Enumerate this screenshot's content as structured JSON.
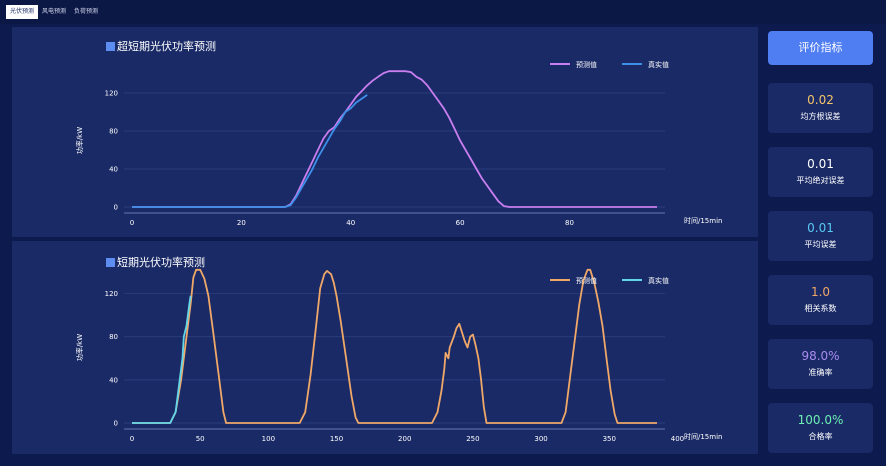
{
  "tabs": [
    {
      "label": "光伏预测",
      "active": true
    },
    {
      "label": "风电预测",
      "active": false
    },
    {
      "label": "负荷预测",
      "active": false
    }
  ],
  "chart1": {
    "title": "超短期光伏功率预测",
    "chart_data": {
      "type": "line",
      "title": "超短期光伏功率预测",
      "xlabel": "时间/15min",
      "ylabel": "功率/kW",
      "xlim": [
        0,
        96
      ],
      "ylim": [
        0,
        140
      ],
      "xticks": [
        0,
        20,
        40,
        60,
        80
      ],
      "yticks": [
        0,
        40,
        80,
        120
      ],
      "grid": true,
      "legend": "top-right",
      "series": [
        {
          "name": "预测值",
          "color": "#c97ef0",
          "points": [
            [
              0,
              0
            ],
            [
              28,
              0
            ],
            [
              29,
              3
            ],
            [
              30,
              12
            ],
            [
              31,
              24
            ],
            [
              32,
              36
            ],
            [
              33,
              48
            ],
            [
              34,
              60
            ],
            [
              35,
              72
            ],
            [
              36,
              80
            ],
            [
              37,
              84
            ],
            [
              38,
              93
            ],
            [
              39,
              100
            ],
            [
              40,
              108
            ],
            [
              41,
              116
            ],
            [
              42,
              122
            ],
            [
              43,
              128
            ],
            [
              44,
              133
            ],
            [
              45,
              137
            ],
            [
              46,
              141
            ],
            [
              47,
              143
            ],
            [
              48,
              143
            ],
            [
              49,
              143
            ],
            [
              50,
              143
            ],
            [
              51,
              142
            ],
            [
              52,
              137
            ],
            [
              53,
              134
            ],
            [
              54,
              128
            ],
            [
              55,
              120
            ],
            [
              56,
              112
            ],
            [
              57,
              104
            ],
            [
              58,
              94
            ],
            [
              59,
              82
            ],
            [
              60,
              70
            ],
            [
              61,
              60
            ],
            [
              62,
              50
            ],
            [
              63,
              40
            ],
            [
              64,
              30
            ],
            [
              65,
              22
            ],
            [
              66,
              14
            ],
            [
              67,
              6
            ],
            [
              68,
              1
            ],
            [
              69,
              0
            ],
            [
              96,
              0
            ]
          ]
        },
        {
          "name": "真实值",
          "color": "#3d8fe8",
          "points": [
            [
              0,
              0
            ],
            [
              28,
              0
            ],
            [
              29,
              2
            ],
            [
              30,
              10
            ],
            [
              31,
              20
            ],
            [
              32,
              30
            ],
            [
              33,
              40
            ],
            [
              34,
              52
            ],
            [
              35,
              62
            ],
            [
              36,
              72
            ],
            [
              37,
              82
            ],
            [
              38,
              90
            ],
            [
              39,
              100
            ],
            [
              40,
              104
            ],
            [
              41,
              110
            ],
            [
              42,
              114
            ],
            [
              43,
              118
            ]
          ]
        }
      ]
    }
  },
  "chart2": {
    "title": "短期光伏功率预测",
    "chart_data": {
      "type": "line",
      "title": "短期光伏功率预测",
      "xlabel": "时间/15min",
      "ylabel": "功率/kW",
      "xlim": [
        0,
        385
      ],
      "ylim": [
        0,
        140
      ],
      "xticks": [
        0,
        50,
        100,
        150,
        200,
        250,
        300,
        350,
        400
      ],
      "yticks": [
        0,
        40,
        80,
        120
      ],
      "grid": true,
      "legend": "top-right",
      "series": [
        {
          "name": "预测值",
          "color": "#f0a868",
          "points": [
            [
              0,
              0
            ],
            [
              28,
              0
            ],
            [
              32,
              10
            ],
            [
              36,
              40
            ],
            [
              40,
              80
            ],
            [
              43,
              110
            ],
            [
              45,
              135
            ],
            [
              47,
              142
            ],
            [
              50,
              142
            ],
            [
              53,
              134
            ],
            [
              56,
              118
            ],
            [
              60,
              80
            ],
            [
              64,
              40
            ],
            [
              67,
              10
            ],
            [
              69,
              0
            ],
            [
              123,
              0
            ],
            [
              127,
              10
            ],
            [
              131,
              45
            ],
            [
              135,
              90
            ],
            [
              138,
              125
            ],
            [
              141,
              138
            ],
            [
              143,
              141
            ],
            [
              146,
              138
            ],
            [
              148,
              130
            ],
            [
              150,
              118
            ],
            [
              153,
              95
            ],
            [
              157,
              60
            ],
            [
              161,
              25
            ],
            [
              164,
              5
            ],
            [
              166,
              0
            ],
            [
              220,
              0
            ],
            [
              224,
              10
            ],
            [
              227,
              30
            ],
            [
              229,
              50
            ],
            [
              230,
              65
            ],
            [
              232,
              60
            ],
            [
              233,
              70
            ],
            [
              236,
              80
            ],
            [
              238,
              88
            ],
            [
              240,
              92
            ],
            [
              242,
              84
            ],
            [
              244,
              76
            ],
            [
              246,
              70
            ],
            [
              248,
              80
            ],
            [
              250,
              82
            ],
            [
              252,
              72
            ],
            [
              254,
              60
            ],
            [
              256,
              40
            ],
            [
              258,
              15
            ],
            [
              260,
              0
            ],
            [
              315,
              0
            ],
            [
              318,
              10
            ],
            [
              321,
              40
            ],
            [
              325,
              80
            ],
            [
              328,
              110
            ],
            [
              331,
              132
            ],
            [
              334,
              142
            ],
            [
              336,
              142
            ],
            [
              339,
              130
            ],
            [
              342,
              112
            ],
            [
              345,
              90
            ],
            [
              348,
              60
            ],
            [
              351,
              30
            ],
            [
              354,
              8
            ],
            [
              356,
              0
            ],
            [
              385,
              0
            ]
          ]
        },
        {
          "name": "真实值",
          "color": "#62d6e8",
          "points": [
            [
              0,
              0
            ],
            [
              28,
              0
            ],
            [
              32,
              10
            ],
            [
              35,
              40
            ],
            [
              37,
              60
            ],
            [
              38,
              80
            ],
            [
              40,
              90
            ],
            [
              41,
              100
            ],
            [
              42,
              110
            ],
            [
              43,
              118
            ]
          ]
        }
      ]
    }
  },
  "metrics": {
    "button_label": "评价指标",
    "items": [
      {
        "value": "0.02",
        "label": "均方根误差",
        "color": "#f5c46a"
      },
      {
        "value": "0.01",
        "label": "平均绝对误差",
        "color": "#ffffff"
      },
      {
        "value": "0.01",
        "label": "平均误差",
        "color": "#58c8f0"
      },
      {
        "value": "1.0",
        "label": "相关系数",
        "color": "#f0a868"
      },
      {
        "value": "98.0%",
        "label": "准确率",
        "color": "#a88cf0"
      },
      {
        "value": "100.0%",
        "label": "合格率",
        "color": "#6cf0b4"
      }
    ]
  }
}
